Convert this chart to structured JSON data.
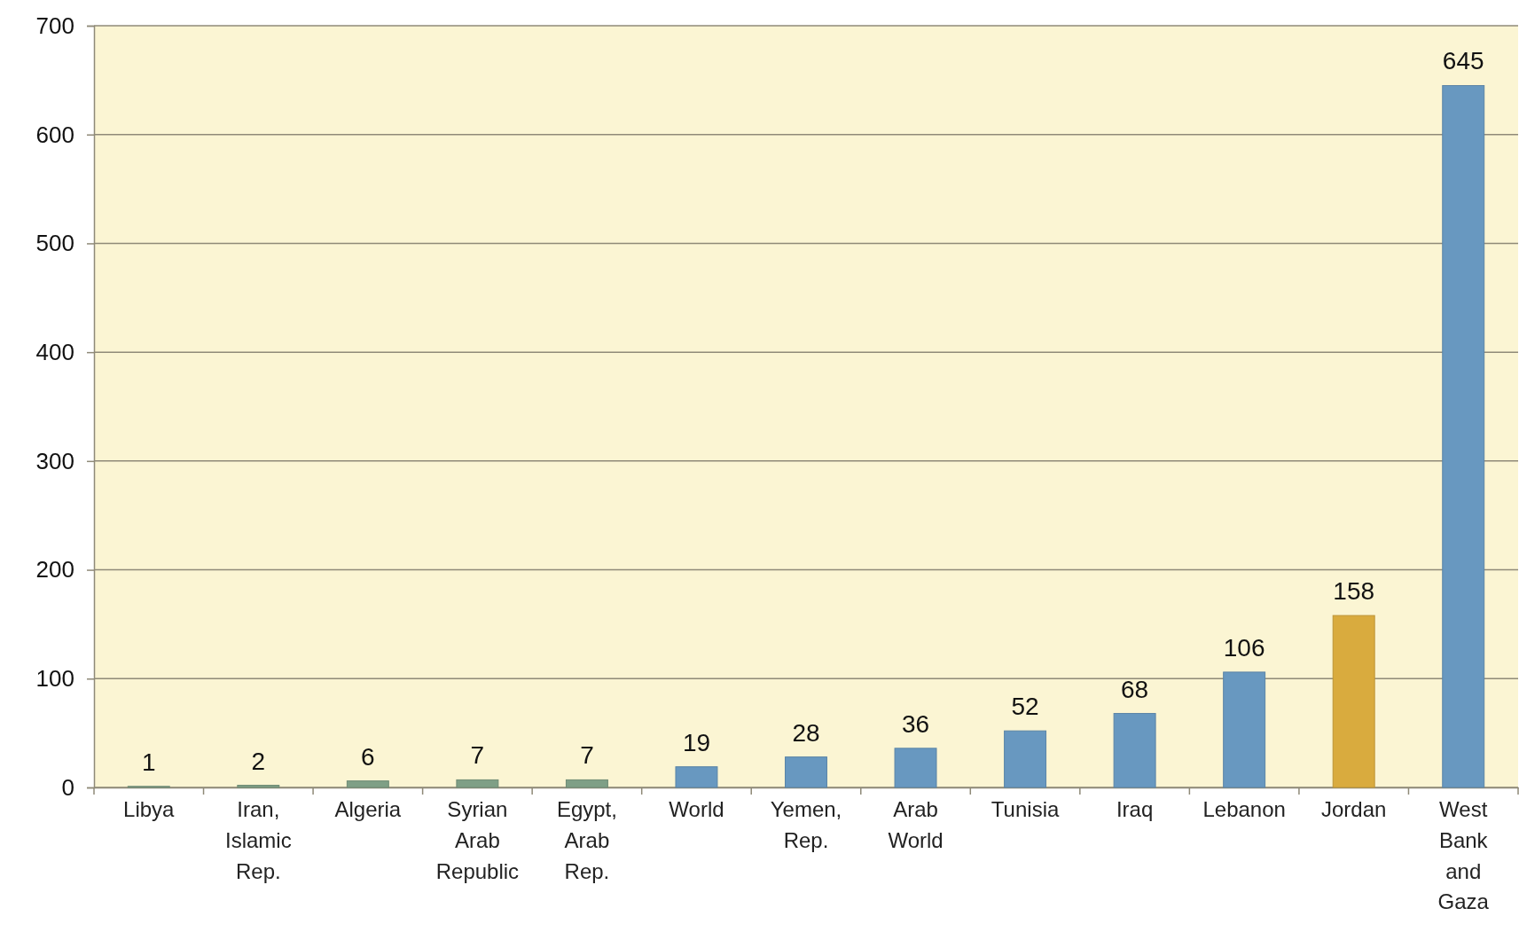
{
  "chart_data": {
    "type": "bar",
    "categories": [
      "Libya",
      "Iran, Islamic Rep.",
      "Algeria",
      "Syrian Arab Republic",
      "Egypt, Arab Rep.",
      "World",
      "Yemen, Rep.",
      "Arab World",
      "Tunisia",
      "Iraq",
      "Lebanon",
      "Jordan",
      "West Bank and Gaza"
    ],
    "values": [
      1,
      2,
      6,
      7,
      7,
      19,
      28,
      36,
      52,
      68,
      106,
      158,
      645
    ],
    "colors": [
      "#7f9f86",
      "#7f9f86",
      "#7f9f86",
      "#7f9f86",
      "#7f9f86",
      "#6898c0",
      "#6898c0",
      "#6898c0",
      "#6898c0",
      "#6898c0",
      "#6898c0",
      "#d9ab3e",
      "#6898c0"
    ],
    "ylim": [
      0,
      700
    ],
    "yticks": [
      0,
      100,
      200,
      300,
      400,
      500,
      600,
      700
    ],
    "grid": "y",
    "data_labels": true
  }
}
